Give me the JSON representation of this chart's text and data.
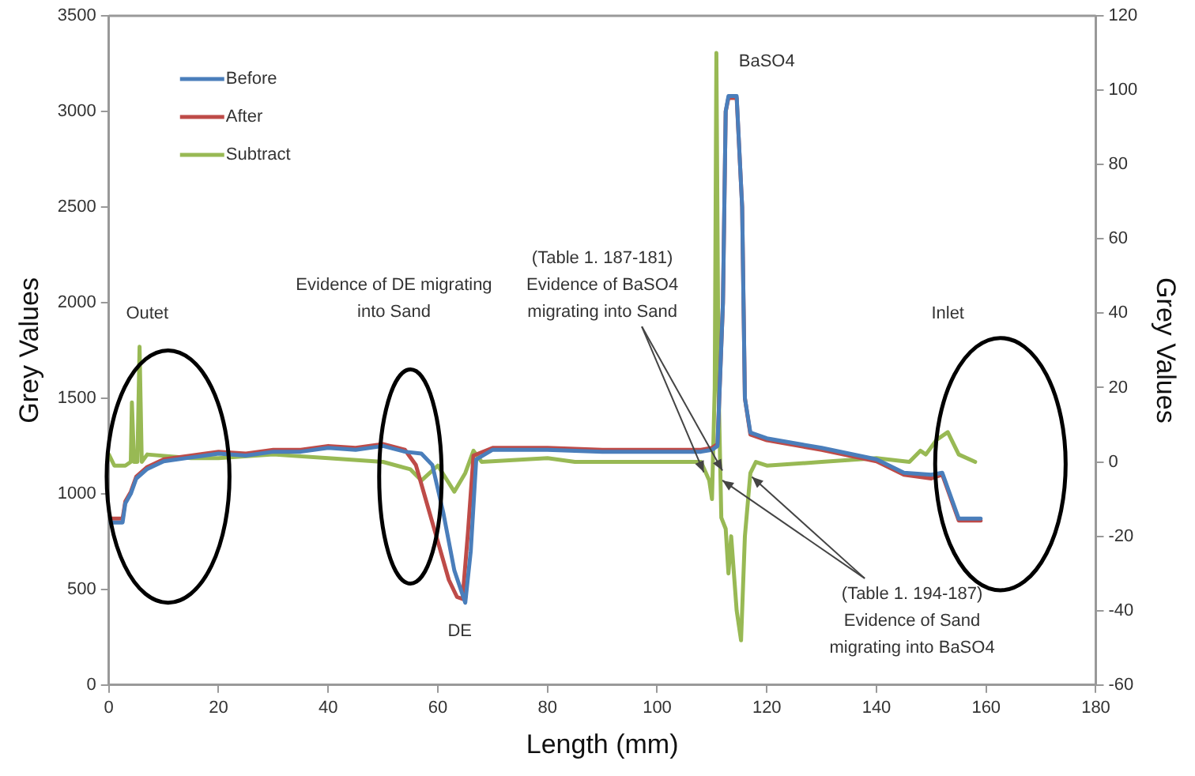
{
  "chart_data": {
    "type": "line",
    "xlabel": "Length (mm)",
    "ylabel": "Grey Values",
    "y2label": "Grey Values",
    "xlim": [
      0,
      180
    ],
    "xticks": [
      0,
      20,
      40,
      60,
      80,
      100,
      120,
      140,
      160,
      180
    ],
    "ylim": [
      0,
      3500
    ],
    "yticks": [
      0,
      500,
      1000,
      1500,
      2000,
      2500,
      3000,
      3500
    ],
    "y2lim": [
      -60,
      120
    ],
    "y2ticks": [
      -60,
      -40,
      -20,
      0,
      20,
      40,
      60,
      80,
      100,
      120
    ],
    "grid": false,
    "legend": "top left",
    "marker": "none",
    "line_style": "solid",
    "series": [
      {
        "name": "Before",
        "color": "#4a7ebb",
        "x": [
          0,
          2.5,
          3,
          4,
          5,
          7,
          10,
          15,
          20,
          25,
          30,
          35,
          40,
          45,
          50,
          54,
          57,
          59,
          61,
          63,
          65,
          66,
          67,
          70,
          80,
          90,
          100,
          108,
          110,
          111,
          112,
          112.5,
          113,
          114.5,
          115.5,
          116,
          117,
          120,
          130,
          140,
          145,
          150,
          152,
          155,
          159
        ],
        "values": [
          850,
          850,
          950,
          1000,
          1080,
          1130,
          1170,
          1190,
          1210,
          1200,
          1220,
          1220,
          1240,
          1230,
          1250,
          1220,
          1210,
          1150,
          900,
          600,
          430,
          700,
          1180,
          1230,
          1230,
          1220,
          1220,
          1220,
          1230,
          1250,
          2000,
          3000,
          3080,
          3080,
          2500,
          1500,
          1320,
          1290,
          1240,
          1180,
          1110,
          1100,
          1110,
          870,
          870
        ]
      },
      {
        "name": "After",
        "color": "#be4b48",
        "x": [
          0,
          2.5,
          3,
          4,
          5,
          7,
          10,
          15,
          20,
          25,
          30,
          35,
          40,
          45,
          50,
          54,
          56,
          58,
          60,
          62,
          63.5,
          64.5,
          65.5,
          66.5,
          70,
          80,
          90,
          100,
          108,
          110,
          111,
          112,
          112.5,
          113,
          114.5,
          115.5,
          116,
          117,
          120,
          130,
          140,
          145,
          150,
          152,
          155,
          159
        ],
        "values": [
          870,
          870,
          960,
          1010,
          1090,
          1140,
          1180,
          1200,
          1220,
          1210,
          1230,
          1230,
          1250,
          1240,
          1260,
          1230,
          1150,
          950,
          750,
          550,
          460,
          450,
          800,
          1200,
          1240,
          1240,
          1230,
          1230,
          1230,
          1240,
          1260,
          2000,
          3000,
          3070,
          3070,
          2500,
          1500,
          1310,
          1280,
          1230,
          1170,
          1100,
          1080,
          1100,
          860,
          860
        ]
      },
      {
        "name": "Subtract",
        "color": "#98b954",
        "axis": "y2",
        "x": [
          0,
          1,
          3,
          4,
          4.2,
          4.6,
          5.2,
          5.6,
          6,
          7,
          15,
          20,
          30,
          40,
          50,
          55,
          57,
          58.5,
          60,
          63,
          65,
          66.5,
          68,
          80,
          85,
          90,
          100,
          108,
          109.5,
          110,
          110.5,
          110.8,
          111.2,
          111.7,
          112.5,
          113,
          113.5,
          114.5,
          115.3,
          116,
          117,
          118,
          120,
          130,
          140,
          146,
          148,
          149,
          151,
          153,
          155,
          158
        ],
        "values": [
          2,
          -1,
          -1,
          0,
          16,
          0,
          0,
          31,
          0,
          2,
          1,
          1,
          2,
          1,
          0,
          -2,
          -5,
          -3,
          -1,
          -8,
          -3,
          3,
          0,
          1,
          0,
          0,
          0,
          0,
          -5,
          -10,
          20,
          110,
          20,
          -15,
          -18,
          -30,
          -20,
          -40,
          -48,
          -20,
          -3,
          0,
          -1,
          0,
          1,
          0,
          3,
          2,
          6,
          8,
          2,
          0
        ]
      }
    ],
    "annotations": [
      "Outet",
      "Inlet",
      "BaSO4",
      "DE",
      "Evidence of DE migrating\ninto Sand",
      {
        "text": "(Table 1. 187-181)\nEvidence of BaSO4\nmigrating into Sand",
        "x": 111.9,
        "y": 1121
      },
      {
        "text": "(Table 1. 194-187)\nEvidence of Sand\nmigrating into BaSO4",
        "x": 117.3,
        "y": 1088
      }
    ]
  }
}
